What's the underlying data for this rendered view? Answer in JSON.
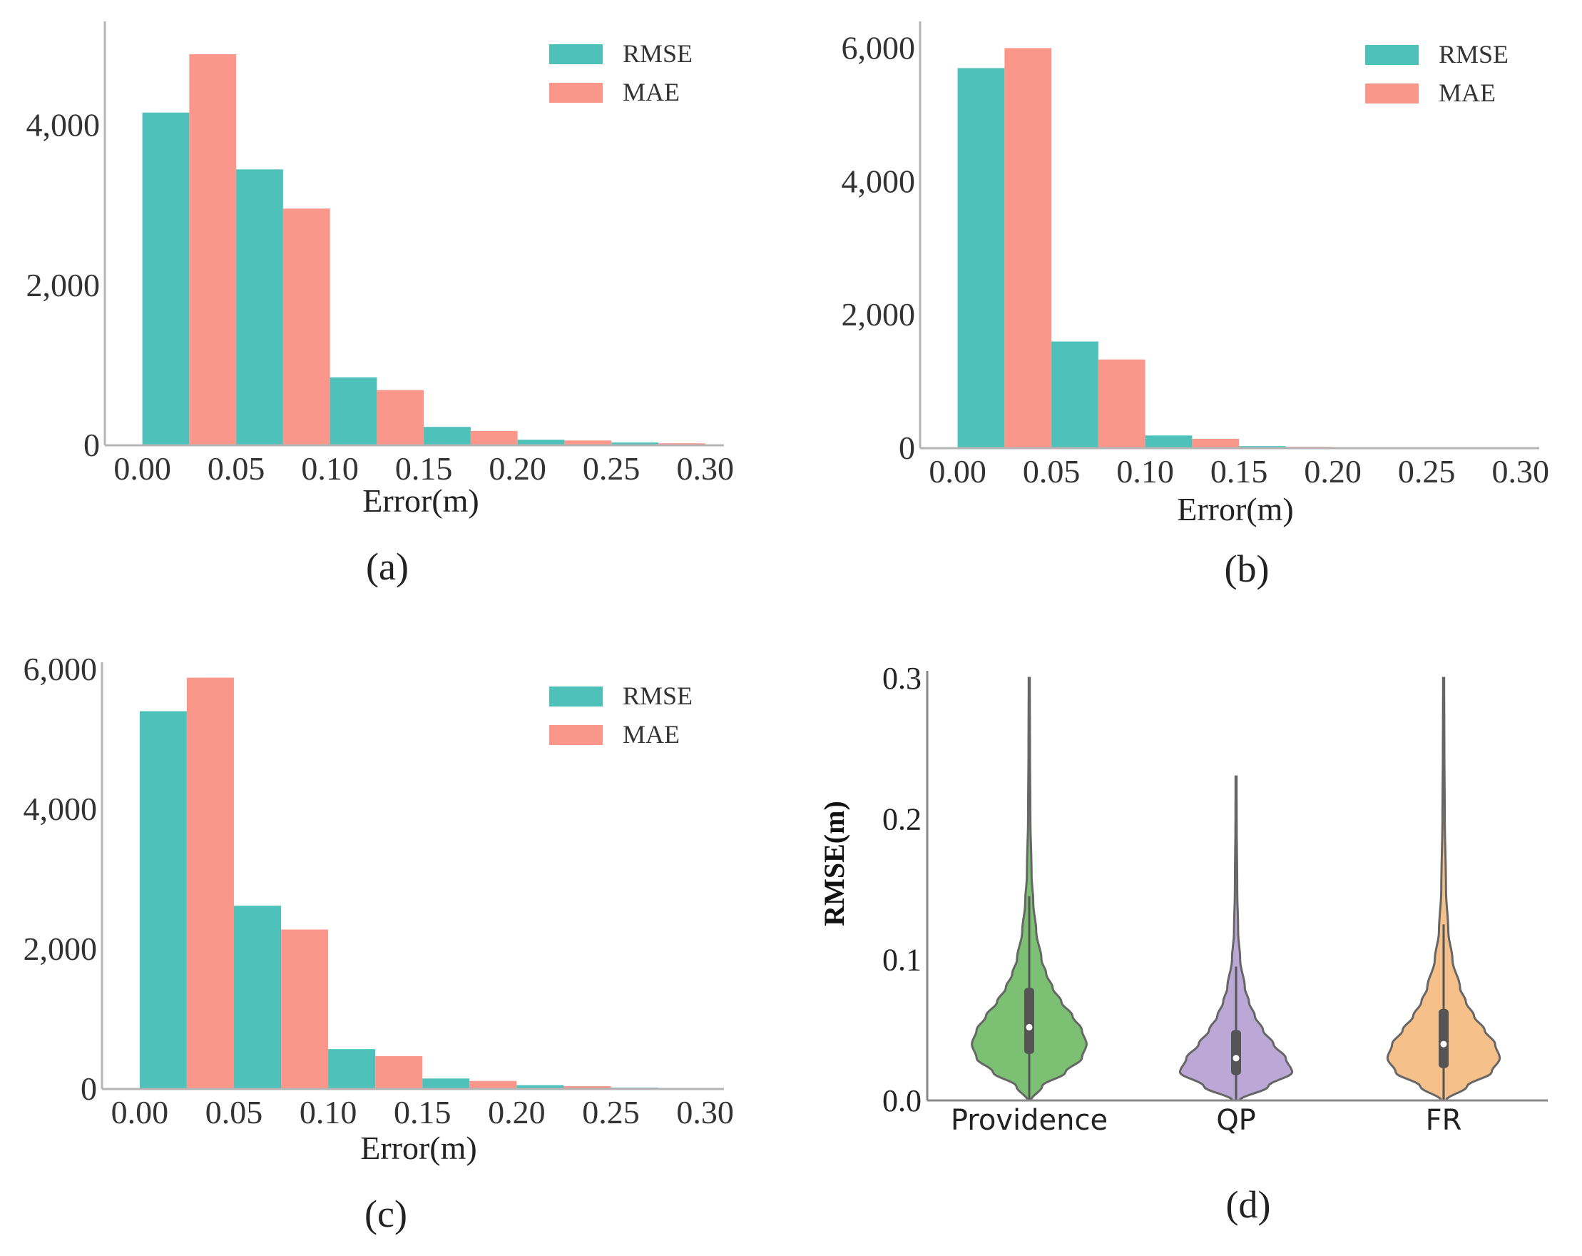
{
  "colors": {
    "rmse": "#4fc1bb",
    "mae": "#fa978a",
    "providence": "#7cc173",
    "qp": "#bca8d6",
    "fr": "#f5c08a",
    "axis": "#b5b5b5",
    "violin_edge": "#666666"
  },
  "chart_data": [
    {
      "type": "bar",
      "panel": "(a)",
      "xlabel": "Error(m)",
      "ylabel": "",
      "x_ticks": [
        "0.00",
        "0.05",
        "0.10",
        "0.15",
        "0.20",
        "0.25",
        "0.30"
      ],
      "y_ticks": [
        0,
        2000,
        4000
      ],
      "y_tick_labels": [
        "0",
        "2,000",
        "4,000"
      ],
      "xlim": [
        -0.02,
        0.31
      ],
      "ylim": [
        0,
        5300
      ],
      "bin_starts": [
        0.0,
        0.05,
        0.1,
        0.15,
        0.2,
        0.25
      ],
      "bin_width": 0.05,
      "legend_position": "top-right",
      "series": [
        {
          "name": "RMSE",
          "values": [
            4160,
            3450,
            850,
            230,
            70,
            35
          ]
        },
        {
          "name": "MAE",
          "values": [
            4890,
            2960,
            690,
            180,
            60,
            25
          ]
        }
      ]
    },
    {
      "type": "bar",
      "panel": "(b)",
      "xlabel": "Error(m)",
      "ylabel": "",
      "x_ticks": [
        "0.00",
        "0.05",
        "0.10",
        "0.15",
        "0.20",
        "0.25",
        "0.30"
      ],
      "y_ticks": [
        0,
        2000,
        4000,
        6000
      ],
      "y_tick_labels": [
        "0",
        "2,000",
        "4,000",
        "6,000"
      ],
      "xlim": [
        -0.02,
        0.31
      ],
      "ylim": [
        0,
        6400
      ],
      "bin_starts": [
        0.0,
        0.05,
        0.1,
        0.15
      ],
      "bin_width": 0.05,
      "legend_position": "top-right",
      "series": [
        {
          "name": "RMSE",
          "values": [
            5700,
            1600,
            190,
            30
          ]
        },
        {
          "name": "MAE",
          "values": [
            6000,
            1330,
            140,
            20
          ]
        }
      ]
    },
    {
      "type": "bar",
      "panel": "(c)",
      "xlabel": "Error(m)",
      "ylabel": "",
      "x_ticks": [
        "0.00",
        "0.05",
        "0.10",
        "0.15",
        "0.20",
        "0.25",
        "0.30"
      ],
      "y_ticks": [
        0,
        2000,
        4000,
        6000
      ],
      "y_tick_labels": [
        "0",
        "2,000",
        "4,000",
        "6,000"
      ],
      "xlim": [
        -0.02,
        0.31
      ],
      "ylim": [
        0,
        6100
      ],
      "bin_starts": [
        0.0,
        0.05,
        0.1,
        0.15,
        0.2,
        0.25
      ],
      "bin_width": 0.05,
      "legend_position": "top-right",
      "series": [
        {
          "name": "RMSE",
          "values": [
            5400,
            2620,
            570,
            150,
            55,
            20
          ]
        },
        {
          "name": "MAE",
          "values": [
            5880,
            2280,
            470,
            115,
            40,
            15
          ]
        }
      ]
    },
    {
      "type": "violin",
      "panel": "(d)",
      "xlabel": "",
      "ylabel": "RMSE(m)",
      "y_ticks": [
        0.0,
        0.1,
        0.2,
        0.3
      ],
      "y_tick_labels": [
        "0.0",
        "0.1",
        "0.2",
        "0.3"
      ],
      "ylim": [
        0.0,
        0.3
      ],
      "categories": [
        "Providence",
        "QP",
        "FR"
      ],
      "series": [
        {
          "category": "Providence",
          "min": 0.0,
          "max": 0.3,
          "whisker_high": 0.145,
          "q1": 0.033,
          "median": 0.052,
          "q3": 0.08,
          "profile": [
            [
              0.0,
              0.03
            ],
            [
              0.01,
              0.22
            ],
            [
              0.02,
              0.62
            ],
            [
              0.03,
              0.9
            ],
            [
              0.04,
              0.98
            ],
            [
              0.05,
              0.9
            ],
            [
              0.06,
              0.74
            ],
            [
              0.07,
              0.55
            ],
            [
              0.08,
              0.4
            ],
            [
              0.09,
              0.29
            ],
            [
              0.1,
              0.21
            ],
            [
              0.12,
              0.12
            ],
            [
              0.14,
              0.07
            ],
            [
              0.16,
              0.04
            ],
            [
              0.2,
              0.02
            ],
            [
              0.25,
              0.012
            ],
            [
              0.3,
              0.008
            ]
          ]
        },
        {
          "category": "QP",
          "min": 0.0,
          "max": 0.23,
          "whisker_high": 0.095,
          "q1": 0.018,
          "median": 0.03,
          "q3": 0.05,
          "profile": [
            [
              0.0,
              0.06
            ],
            [
              0.01,
              0.55
            ],
            [
              0.02,
              0.96
            ],
            [
              0.03,
              0.85
            ],
            [
              0.04,
              0.64
            ],
            [
              0.05,
              0.46
            ],
            [
              0.06,
              0.32
            ],
            [
              0.07,
              0.22
            ],
            [
              0.08,
              0.15
            ],
            [
              0.1,
              0.07
            ],
            [
              0.12,
              0.035
            ],
            [
              0.15,
              0.02
            ],
            [
              0.2,
              0.01
            ],
            [
              0.23,
              0.008
            ]
          ]
        },
        {
          "category": "FR",
          "min": 0.0,
          "max": 0.3,
          "whisker_high": 0.125,
          "q1": 0.023,
          "median": 0.04,
          "q3": 0.065,
          "profile": [
            [
              0.0,
              0.04
            ],
            [
              0.01,
              0.4
            ],
            [
              0.02,
              0.82
            ],
            [
              0.03,
              0.96
            ],
            [
              0.04,
              0.88
            ],
            [
              0.05,
              0.7
            ],
            [
              0.06,
              0.52
            ],
            [
              0.07,
              0.38
            ],
            [
              0.08,
              0.28
            ],
            [
              0.1,
              0.15
            ],
            [
              0.12,
              0.08
            ],
            [
              0.15,
              0.04
            ],
            [
              0.2,
              0.02
            ],
            [
              0.25,
              0.012
            ],
            [
              0.3,
              0.008
            ]
          ]
        }
      ]
    }
  ]
}
